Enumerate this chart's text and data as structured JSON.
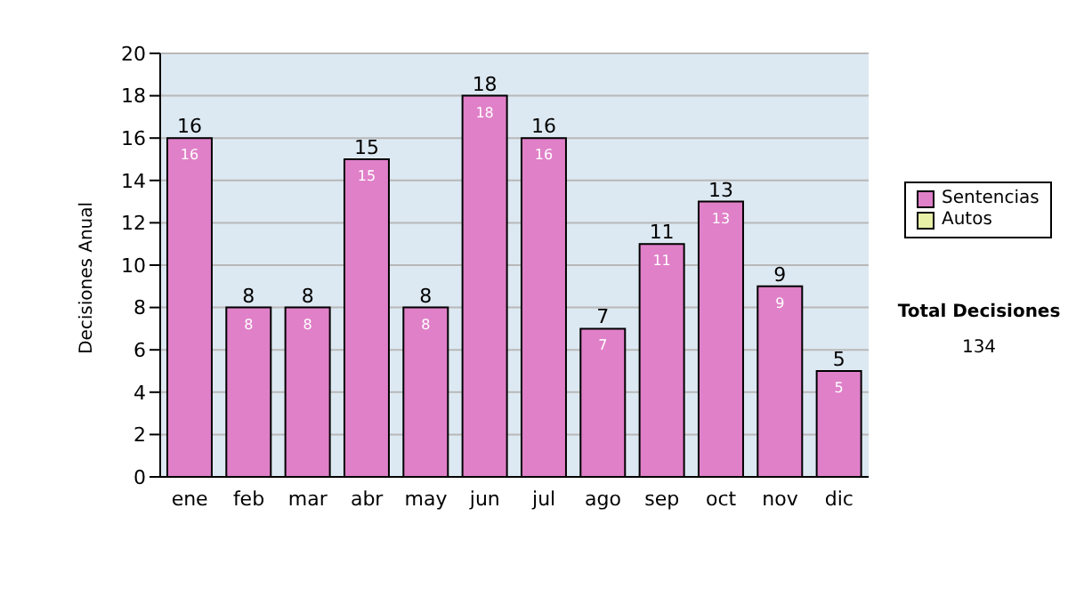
{
  "chart_data": {
    "type": "bar",
    "stacked": true,
    "ylabel": "Decisiones Anual",
    "categories": [
      "ene",
      "feb",
      "mar",
      "abr",
      "may",
      "jun",
      "jul",
      "ago",
      "sep",
      "oct",
      "nov",
      "dic"
    ],
    "series": [
      {
        "name": "Sentencias",
        "color": "#e080c8",
        "values": [
          16,
          8,
          8,
          15,
          8,
          18,
          16,
          7,
          11,
          13,
          9,
          5
        ],
        "value_labels": [
          "16",
          "8",
          "8",
          "15",
          "8",
          "18",
          "16",
          "7",
          "11",
          "13",
          "9",
          "5"
        ]
      },
      {
        "name": "Autos",
        "color": "#e8f0a8",
        "values": [
          0,
          0,
          0,
          0,
          0,
          0,
          0,
          0,
          0,
          0,
          0,
          0
        ]
      }
    ],
    "totals": [
      "16",
      "8",
      "8",
      "15",
      "8",
      "18",
      "16",
      "7",
      "11",
      "13",
      "9",
      "5"
    ],
    "ylim": [
      0,
      20
    ],
    "yticks": [
      0,
      2,
      4,
      6,
      8,
      10,
      12,
      14,
      16,
      18,
      20
    ],
    "grid": "y",
    "legend": "right",
    "annotations": [
      "Total Decisiones",
      "134"
    ]
  }
}
